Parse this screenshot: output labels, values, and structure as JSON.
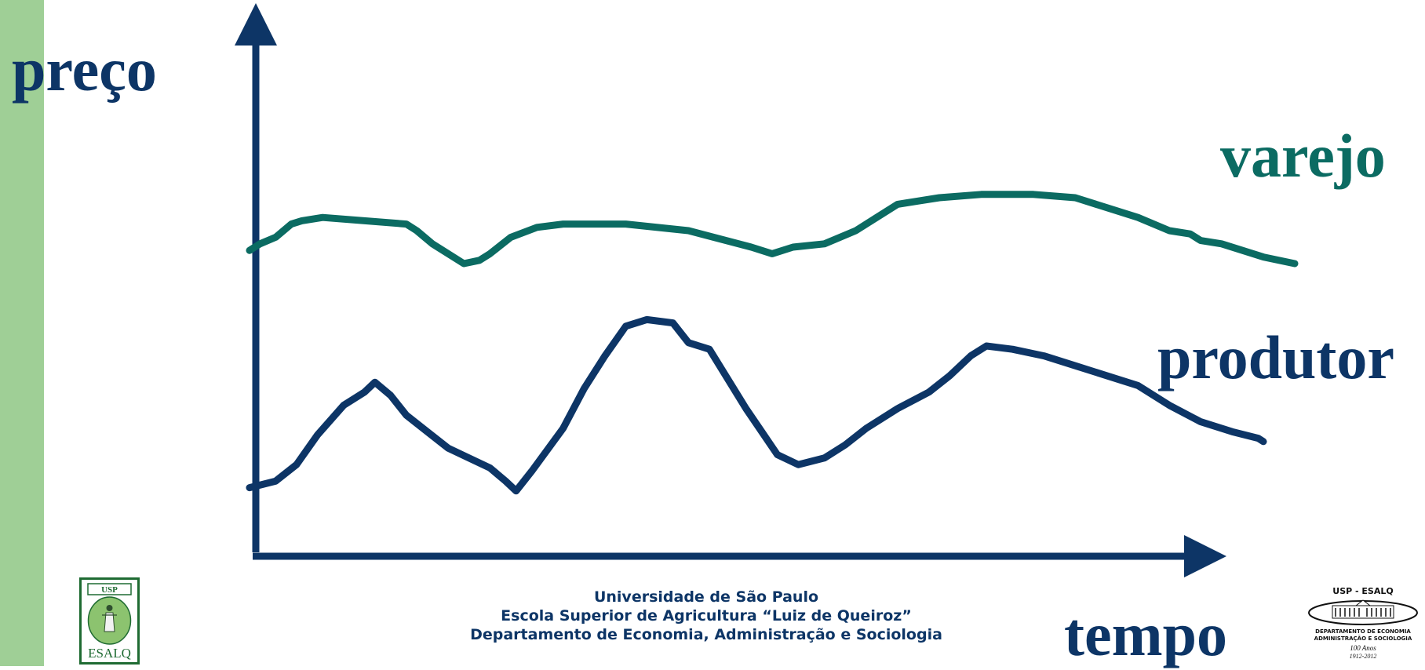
{
  "chart_data": {
    "type": "line",
    "xlabel": "tempo",
    "ylabel": "preço",
    "series": [
      {
        "name": "varejo",
        "color": "#0b6b62",
        "x": [
          0,
          1,
          2.5,
          4,
          5,
          7,
          15,
          16,
          17.5,
          20.5,
          22,
          23,
          25,
          27.5,
          30,
          36,
          42,
          48,
          50,
          52,
          55,
          58,
          60,
          62,
          64,
          66,
          70,
          75,
          79,
          85,
          88,
          90,
          91,
          93,
          95,
          97,
          100
        ],
        "y": [
          74,
          76,
          78,
          82,
          83,
          84,
          82,
          80,
          76,
          70,
          71,
          73,
          78,
          81,
          82,
          82,
          80,
          75,
          73,
          75,
          76,
          80,
          84,
          88,
          89,
          90,
          91,
          91,
          90,
          84,
          80,
          79,
          77,
          76,
          74,
          72,
          70
        ]
      },
      {
        "name": "produtor",
        "color": "#0d3566",
        "x": [
          0,
          2.5,
          4.5,
          6.5,
          9,
          11,
          12,
          13.5,
          15,
          17,
          19,
          21,
          23,
          24.5,
          25.5,
          27,
          30,
          32,
          34,
          36,
          38,
          40.5,
          42,
          44,
          47.5,
          49,
          50.5,
          52.5,
          55,
          57,
          59,
          62,
          65,
          67,
          69,
          70.5,
          73,
          76,
          79,
          82,
          85,
          88,
          91,
          94,
          96.5,
          97
        ],
        "y": [
          2,
          4,
          9,
          18,
          27,
          31,
          34,
          30,
          24,
          19,
          14,
          11,
          8,
          4,
          1,
          7,
          20,
          32,
          42,
          51,
          53,
          52,
          46,
          44,
          26,
          19,
          12,
          9,
          11,
          15,
          20,
          26,
          31,
          36,
          42,
          45,
          44,
          42,
          39,
          36,
          33,
          27,
          22,
          19,
          17,
          16
        ]
      }
    ],
    "series_labels": {
      "varejo": "varejo",
      "produtor": "produtor"
    },
    "axis_labels": {
      "y": "preço",
      "x": "tempo"
    },
    "xlim": [
      0,
      100
    ],
    "ylim": [
      0,
      100
    ],
    "grid": false,
    "legend": "none"
  },
  "footer": {
    "line1": "Universidade de São Paulo",
    "line2": "Escola Superior de Agricultura “Luiz de Queiroz”",
    "line3": "Departamento de Economia, Administração e Sociologia"
  },
  "logo_left": {
    "top_text": "USP",
    "bottom_text": "ESALQ"
  },
  "logo_right": {
    "title": "USP - ESALQ",
    "dept_line1": "DEPARTAMENTO DE ECONOMIA",
    "dept_line2": "ADMINISTRAÇÃO E SOCIOLOGIA",
    "years": "100 Anos",
    "period": "1912-2012"
  },
  "colors": {
    "sidebar": "#9fcf96",
    "axis": "#0d3566",
    "varejo": "#0b6b62",
    "produtor": "#0d3566",
    "logo_green": "#1f6b32"
  }
}
